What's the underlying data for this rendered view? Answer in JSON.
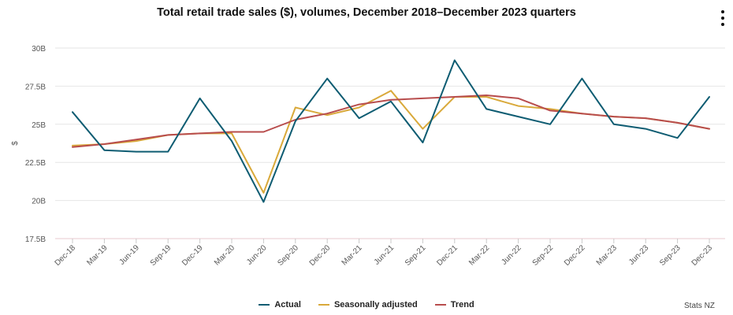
{
  "header": {
    "title": "Total retail trade sales ($), volumes, December 2018–December 2023 quarters",
    "menu_icon": "kebab-menu-icon"
  },
  "footer": {
    "source": "Stats NZ"
  },
  "chart_data": {
    "type": "line",
    "title": "Total retail trade sales ($), volumes, December 2018–December 2023 quarters",
    "xlabel": "",
    "ylabel": "$",
    "ylim": [
      17.5,
      30
    ],
    "yticks": [
      17.5,
      20,
      22.5,
      25,
      27.5,
      30
    ],
    "ytick_labels": [
      "17.5B",
      "20B",
      "22.5B",
      "25B",
      "27.5B",
      "30B"
    ],
    "categories": [
      "Dec-18",
      "Mar-19",
      "Jun-19",
      "Sep-19",
      "Dec-19",
      "Mar-20",
      "Jun-20",
      "Sep-20",
      "Dec-20",
      "Mar-21",
      "Jun-21",
      "Sep-21",
      "Dec-21",
      "Mar-22",
      "Jun-22",
      "Sep-22",
      "Dec-22",
      "Mar-23",
      "Jun-23",
      "Sep-23",
      "Dec-23"
    ],
    "legend_position": "bottom-center",
    "grid": true,
    "series": [
      {
        "name": "Actual",
        "color": "#0e5c72",
        "values": [
          25.8,
          23.3,
          23.2,
          23.2,
          26.7,
          23.9,
          19.9,
          25.2,
          28.0,
          25.4,
          26.5,
          23.8,
          29.2,
          26.0,
          25.5,
          25.0,
          28.0,
          25.0,
          24.7,
          24.1,
          26.8
        ]
      },
      {
        "name": "Seasonally adjusted",
        "color": "#d9a93a",
        "values": [
          23.6,
          23.7,
          23.9,
          24.3,
          24.4,
          24.4,
          20.5,
          26.1,
          25.6,
          26.1,
          27.2,
          24.7,
          26.8,
          26.8,
          26.2,
          26.0,
          25.7,
          25.5,
          25.4,
          25.1,
          24.7
        ]
      },
      {
        "name": "Trend",
        "color": "#b84d4d",
        "values": [
          23.5,
          23.7,
          24.0,
          24.3,
          24.4,
          24.5,
          24.5,
          25.3,
          25.7,
          26.3,
          26.6,
          26.7,
          26.8,
          26.9,
          26.7,
          25.9,
          25.7,
          25.5,
          25.4,
          25.1,
          24.7
        ]
      }
    ]
  }
}
